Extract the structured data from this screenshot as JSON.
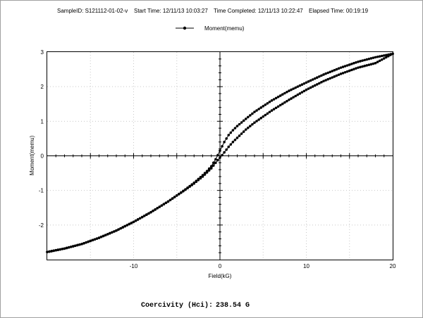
{
  "header": {
    "sample_id": "SampleID: S121112-01-02-v",
    "start_time": "Start Time: 12/11/13 10:03:27",
    "time_completed": "Time Completed: 12/11/13 10:22:47",
    "elapsed_time": "Elapsed Time:  00:19:19"
  },
  "footer": {
    "coercivity_label": "Coercivity (Hci):",
    "coercivity_value": "238.54 G"
  },
  "colors": {
    "line": "#000000",
    "grid": "#c8c8c8",
    "frame": "#a0a0a0"
  },
  "chart_data": {
    "type": "line",
    "title": "",
    "xlabel": "Field(kG)",
    "ylabel": "Moment(memu)",
    "xlim": [
      -20,
      20
    ],
    "ylim": [
      -3,
      3
    ],
    "xticks": [
      -10,
      0,
      10,
      20
    ],
    "yticks": [
      -2,
      -1,
      0,
      1,
      2,
      3
    ],
    "grid": true,
    "legend": "top-center",
    "series": [
      {
        "name": "Moment(memu)",
        "branch": "descending",
        "x": [
          20,
          18,
          16,
          14,
          12,
          10,
          8,
          6,
          4,
          3,
          2,
          1.5,
          1,
          0.5,
          0,
          -0.25,
          -0.5,
          -1,
          -1.5,
          -2,
          -3,
          -4,
          -6,
          -8,
          -10,
          -12,
          -14,
          -16,
          -18,
          -20
        ],
        "y": [
          2.95,
          2.85,
          2.72,
          2.55,
          2.35,
          2.12,
          1.88,
          1.6,
          1.27,
          1.07,
          0.86,
          0.74,
          0.6,
          0.4,
          0.15,
          0.02,
          -0.1,
          -0.3,
          -0.44,
          -0.56,
          -0.78,
          -0.97,
          -1.32,
          -1.63,
          -1.91,
          -2.16,
          -2.37,
          -2.55,
          -2.68,
          -2.78
        ]
      },
      {
        "name": "Moment(memu)",
        "branch": "ascending",
        "x": [
          -20,
          -18,
          -16,
          -14,
          -12,
          -10,
          -8,
          -6,
          -4,
          -3,
          -2,
          -1.5,
          -1,
          -0.5,
          0,
          0.25,
          0.5,
          1,
          1.5,
          2,
          3,
          4,
          6,
          8,
          10,
          12,
          14,
          16,
          18,
          20
        ],
        "y": [
          -2.78,
          -2.68,
          -2.55,
          -2.37,
          -2.16,
          -1.91,
          -1.63,
          -1.32,
          -0.98,
          -0.8,
          -0.6,
          -0.48,
          -0.36,
          -0.2,
          -0.05,
          0.02,
          0.1,
          0.26,
          0.4,
          0.52,
          0.76,
          0.96,
          1.31,
          1.62,
          1.91,
          2.16,
          2.37,
          2.55,
          2.68,
          2.95
        ]
      }
    ]
  }
}
